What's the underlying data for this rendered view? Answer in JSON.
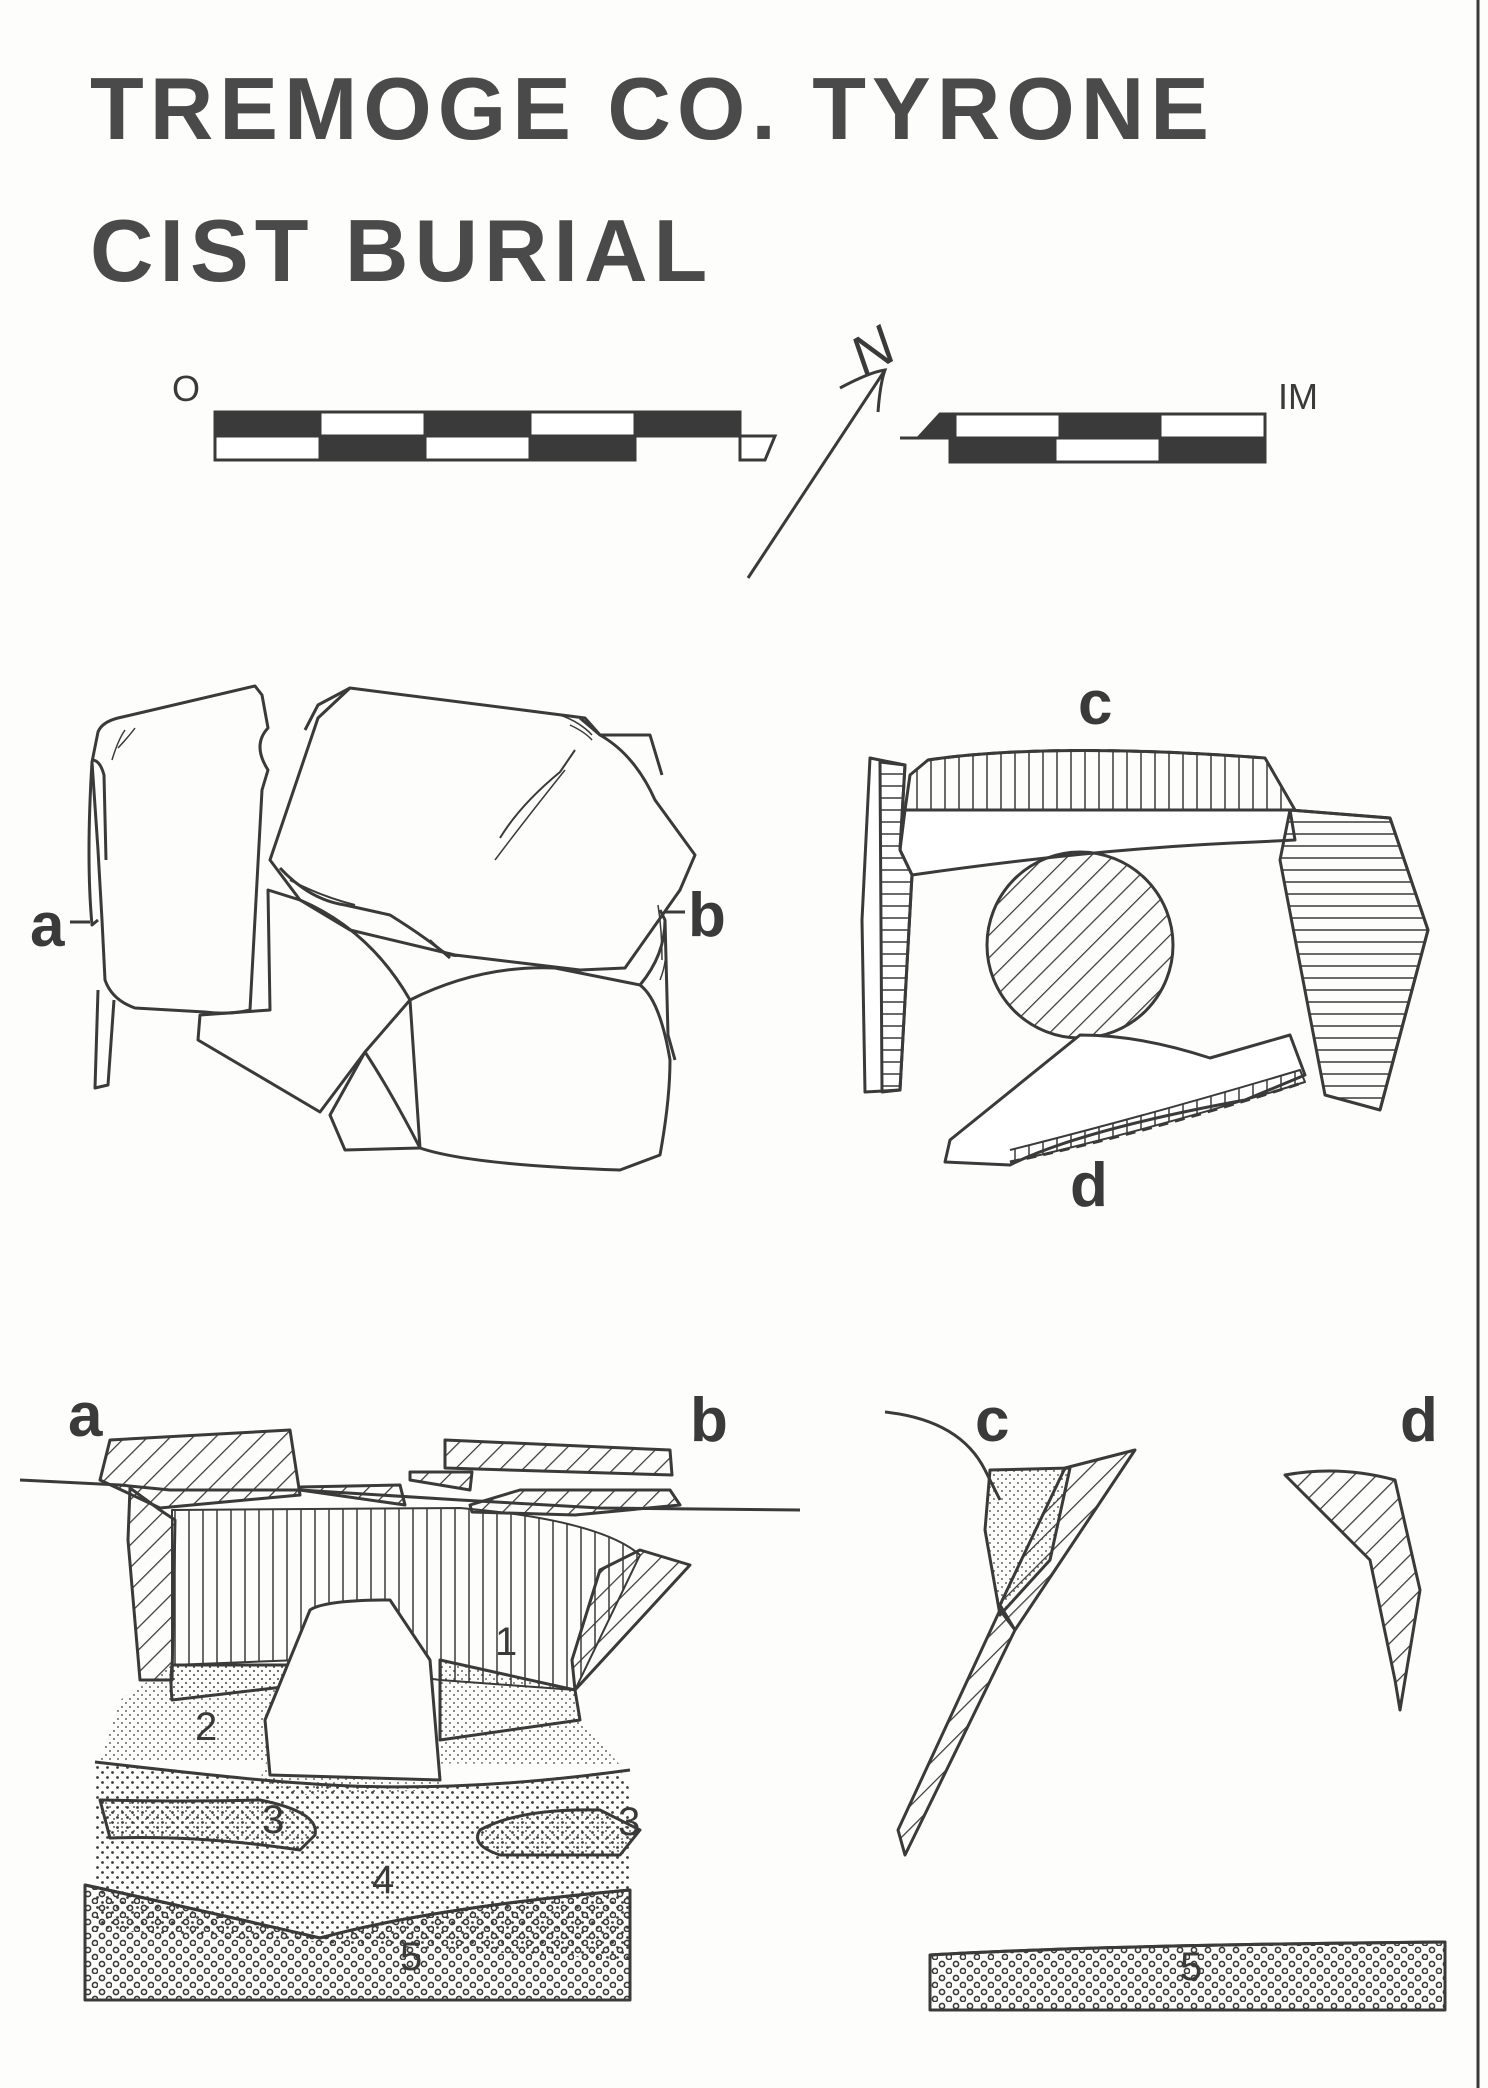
{
  "title": {
    "line1": "TREMOGE  CO. TYRONE",
    "line2": "CIST  BURIAL"
  },
  "scale": {
    "start": "O",
    "end": "IM"
  },
  "north": "N",
  "plan_labels": {
    "a": "a",
    "b": "b",
    "c": "c",
    "d": "d"
  },
  "section_labels": {
    "a": "a",
    "b": "b",
    "c": "c",
    "d": "d"
  },
  "layers": {
    "l1": "1",
    "l2": "2",
    "l3a": "3",
    "l3b": "3",
    "l4": "4",
    "l5": "5",
    "l5b": "5"
  },
  "colors": {
    "ink": "#3a3a3a",
    "paper": "#fdfdfb"
  }
}
